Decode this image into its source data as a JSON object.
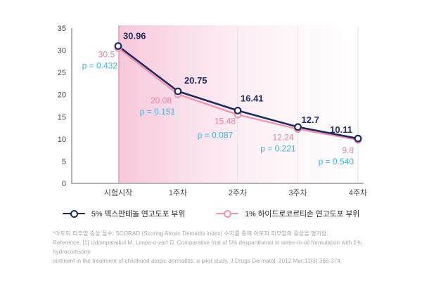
{
  "chart_data": {
    "type": "line",
    "title": "",
    "xlabel": "",
    "ylabel": "",
    "categories": [
      "시험시작",
      "1주차",
      "2주차",
      "3주차",
      "4주차"
    ],
    "series": [
      {
        "name": "5% 덱스판테놀 연고도포 부위",
        "color": "#1f2a5c",
        "values": [
          30.96,
          20.75,
          16.41,
          12.7,
          10.11
        ],
        "labels": [
          "30.96",
          "20.75",
          "16.41",
          "12.7",
          "10.11"
        ]
      },
      {
        "name": "1% 하이드로코르티손 연고도포 부위",
        "color": "#ef94b2",
        "values": [
          30.5,
          20.08,
          15.48,
          12.24,
          9.8
        ],
        "labels": [
          "30.5",
          "20.08",
          "15.48",
          "12.24",
          "9.8"
        ]
      }
    ],
    "p_values": [
      "p = 0.432",
      "p = 0.151",
      "p = 0.087",
      "p = 0.221",
      "p = 0.540"
    ],
    "p_value_color": "#3fb2e2",
    "pink_label_color": "#ee7ea6",
    "ylim": [
      0,
      35
    ],
    "yticks": [
      0,
      5,
      10,
      15,
      20,
      25,
      30,
      35
    ],
    "grid": "vertical",
    "axis_color": "#b3b3b7",
    "gridline_color": "#e5e5ea",
    "tick_label_color": "#4a4a4e",
    "highlight_band": {
      "start_category": "시험시작",
      "edge_color": "#f1abc5",
      "fill_color": "#f7c8da"
    },
    "legend_position": "bottom"
  },
  "legend": {
    "items": [
      {
        "label": "5% 덱스판테놀 연고도포 부위",
        "color": "#1f2a5c"
      },
      {
        "label": "1% 하이드로코르티손 연고도포 부위",
        "color": "#ef94b2"
      }
    ]
  },
  "footnote": {
    "line1": "*아토피 피부염 증상 점수: SCORAD (Scoring Atopic Dematits index) 수치를 통해 아토피 피부염의 증상을 평가함.",
    "line2": "Reference. [1] Udompataikul M, Limpa-o-vart D. Comparative trial of 5% dexpanthenol in water-in-oil formulation with 1% hydrocortisone",
    "line3": "ointment in the treatment of childhood atopic dermatitis: a pilot study. J Drugs Dermatol. 2012 Mar;11(3) 366-374."
  }
}
